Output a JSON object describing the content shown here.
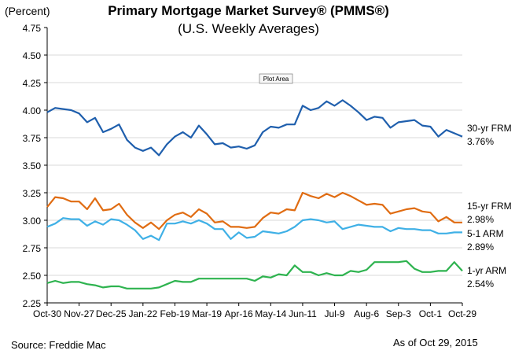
{
  "chart_data": {
    "type": "line",
    "title": "Primary Mortgage Market Survey® (PMMS®)",
    "subtitle": "(U.S. Weekly Averages)",
    "y_unit_label": "(Percent)",
    "ylim": [
      2.25,
      4.75
    ],
    "y_ticks": [
      "4.75",
      "4.50",
      "4.25",
      "4.00",
      "3.75",
      "3.50",
      "3.25",
      "3.00",
      "2.75",
      "2.50",
      "2.25"
    ],
    "x_ticks": [
      "Oct-30",
      "Nov-27",
      "Dec-25",
      "Jan-22",
      "Feb-19",
      "Mar-19",
      "Apr-16",
      "May-14",
      "Jun-11",
      "Jul-9",
      "Aug-6",
      "Sep-3",
      "Oct-1",
      "Oct-29"
    ],
    "grid": "horizontal",
    "series": [
      {
        "name": "30-yr FRM",
        "last_value_label": "3.76%",
        "color": "#1f5fad",
        "values": [
          3.98,
          4.02,
          4.01,
          4.0,
          3.97,
          3.89,
          3.93,
          3.8,
          3.83,
          3.87,
          3.73,
          3.66,
          3.63,
          3.66,
          3.59,
          3.69,
          3.76,
          3.8,
          3.75,
          3.86,
          3.78,
          3.69,
          3.7,
          3.66,
          3.67,
          3.65,
          3.68,
          3.8,
          3.85,
          3.84,
          3.87,
          3.87,
          4.04,
          4.0,
          4.02,
          4.08,
          4.04,
          4.09,
          4.04,
          3.98,
          3.91,
          3.94,
          3.93,
          3.84,
          3.89,
          3.9,
          3.91,
          3.86,
          3.85,
          3.76,
          3.82,
          3.79,
          3.76
        ]
      },
      {
        "name": "15-yr FRM",
        "last_value_label": "2.98%",
        "color": "#e06c12",
        "values": [
          3.12,
          3.21,
          3.2,
          3.17,
          3.17,
          3.1,
          3.2,
          3.09,
          3.1,
          3.15,
          3.05,
          2.98,
          2.93,
          2.98,
          2.92,
          3.0,
          3.05,
          3.07,
          3.03,
          3.1,
          3.06,
          2.98,
          2.99,
          2.94,
          2.94,
          2.93,
          2.94,
          3.02,
          3.07,
          3.06,
          3.1,
          3.09,
          3.25,
          3.22,
          3.2,
          3.24,
          3.21,
          3.25,
          3.22,
          3.18,
          3.14,
          3.15,
          3.14,
          3.06,
          3.08,
          3.1,
          3.11,
          3.08,
          3.07,
          2.99,
          3.03,
          2.98,
          2.98
        ]
      },
      {
        "name": "5-1 ARM",
        "last_value_label": "2.89%",
        "color": "#3fb0e6",
        "values": [
          2.94,
          2.97,
          3.02,
          3.01,
          3.01,
          2.95,
          2.99,
          2.96,
          3.01,
          3.0,
          2.96,
          2.91,
          2.83,
          2.86,
          2.82,
          2.97,
          2.97,
          2.99,
          2.97,
          3.0,
          2.97,
          2.92,
          2.92,
          2.83,
          2.89,
          2.84,
          2.85,
          2.9,
          2.89,
          2.88,
          2.9,
          2.94,
          3.0,
          3.01,
          3.0,
          2.98,
          2.99,
          2.92,
          2.94,
          2.96,
          2.95,
          2.94,
          2.94,
          2.9,
          2.93,
          2.92,
          2.92,
          2.91,
          2.91,
          2.88,
          2.88,
          2.89,
          2.89
        ]
      },
      {
        "name": "1-yr ARM",
        "last_value_label": "2.54%",
        "color": "#2eb34f",
        "values": [
          2.43,
          2.45,
          2.43,
          2.44,
          2.44,
          2.42,
          2.41,
          2.39,
          2.4,
          2.4,
          2.38,
          2.38,
          2.38,
          2.38,
          2.39,
          2.42,
          2.45,
          2.44,
          2.44,
          2.47,
          2.47,
          2.47,
          2.47,
          2.47,
          2.47,
          2.47,
          2.45,
          2.49,
          2.48,
          2.51,
          2.5,
          2.59,
          2.53,
          2.53,
          2.5,
          2.52,
          2.5,
          2.5,
          2.54,
          2.53,
          2.55,
          2.62,
          2.62,
          2.62,
          2.62,
          2.63,
          2.56,
          2.53,
          2.53,
          2.54,
          2.54,
          2.62,
          2.54
        ]
      }
    ]
  },
  "footer": {
    "source": "Source: Freddie Mac",
    "as_of": "As of Oct 29, 2015"
  },
  "plot_area_tag": "Plot Area"
}
